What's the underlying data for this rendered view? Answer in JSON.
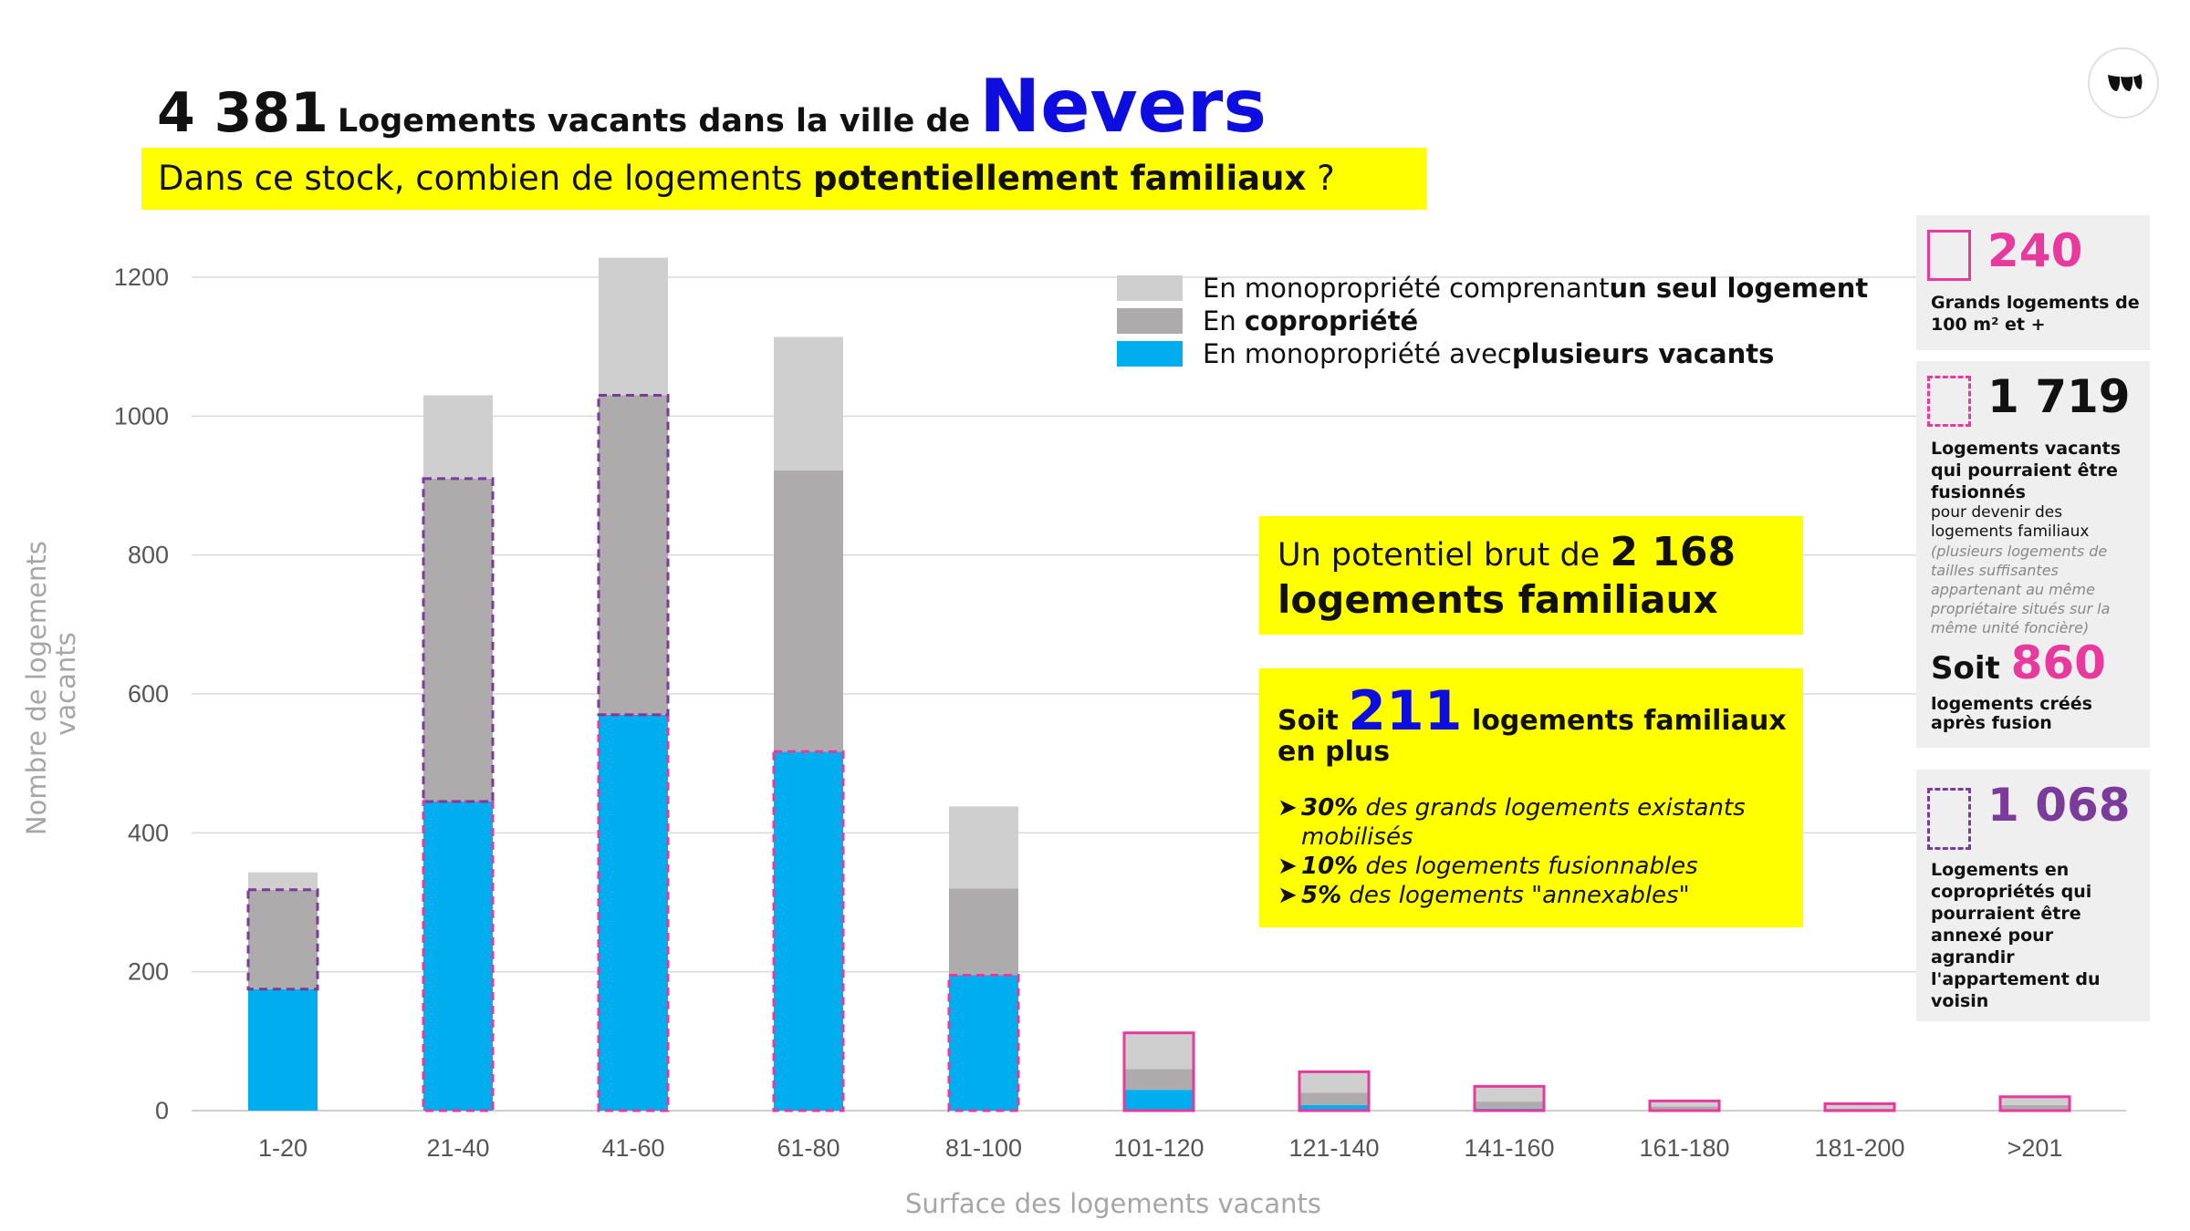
{
  "title": {
    "count": "4 381",
    "text": "Logements vacants dans la ville de",
    "city": "Nevers"
  },
  "subtitle": {
    "part1": "Dans ce stock, combien de logements ",
    "bold": "potentiellement familiaux",
    "part2": " ?"
  },
  "legend": [
    {
      "text": "En monopropriété comprenant ",
      "bold": "un seul logement",
      "color": "#d0cfcf"
    },
    {
      "text": "En ",
      "bold": "copropriété",
      "color": "#adabab"
    },
    {
      "text": "En monopropriété avec ",
      "bold": "plusieurs vacants",
      "color": "#00adef"
    }
  ],
  "box1": {
    "line1": "Un potentiel brut de ",
    "value": "2 168",
    "line2": "logements familiaux"
  },
  "box2": {
    "soit": "Soit ",
    "value": "211",
    "rest": " logements familiaux",
    "line2": "en plus",
    "bullets": [
      {
        "bold": "30%",
        "text": " des grands logements existants mobilisés"
      },
      {
        "bold": "10%",
        "text": " des logements fusionnables"
      },
      {
        "bold": "5%",
        "text": " des logements \"annexables\""
      }
    ]
  },
  "panels": {
    "p1": {
      "value": "240",
      "text": "Grands logements de 100 m² et +"
    },
    "p2": {
      "value": "1 719",
      "text": "Logements vacants qui pourraient être fusionnés",
      "small": "pour devenir des logements familiaux",
      "italic": "(plusieurs logements de tailles suffisantes appartenant au même propriétaire situés sur la même unité foncière)",
      "soit": "Soit ",
      "soit_value": "860",
      "soit_text": "logements créés après fusion"
    },
    "p3": {
      "value": "1 068",
      "text": "Logements en copropriétés qui pourraient être annexé pour agrandir l'appartement du voisin"
    }
  },
  "colors": {
    "mono_one": "#d0cfcf",
    "copro": "#adabab",
    "mono_multi": "#00adef",
    "pink": "#e8399e",
    "purple": "#7b3b9a",
    "yellow": "#ffff00",
    "blue_text": "#0d0de0"
  },
  "chart_data": {
    "type": "bar",
    "stacked": true,
    "categories": [
      "1-20",
      "21-40",
      "41-60",
      "61-80",
      "81-100",
      "101-120",
      "121-140",
      "141-160",
      "161-180",
      "181-200",
      ">201"
    ],
    "series": [
      {
        "name": "En monopropriété avec plusieurs vacants",
        "color": "#00adef",
        "values": [
          175,
          445,
          570,
          517,
          195,
          30,
          8,
          3,
          2,
          1,
          2
        ]
      },
      {
        "name": "En copropriété",
        "color": "#adabab",
        "values": [
          143,
          465,
          460,
          405,
          125,
          30,
          18,
          10,
          4,
          2,
          6
        ]
      },
      {
        "name": "En monopropriété comprenant un seul logement",
        "color": "#d0cfcf",
        "values": [
          25,
          120,
          198,
          192,
          118,
          52,
          30,
          22,
          8,
          7,
          12
        ]
      }
    ],
    "highlights": [
      {
        "category": "1-20",
        "from": 175,
        "to": 318,
        "style": "purple-dashed"
      },
      {
        "category": "21-40",
        "from": 0,
        "to": 445,
        "style": "pink-dashed"
      },
      {
        "category": "21-40",
        "from": 445,
        "to": 910,
        "style": "purple-dashed"
      },
      {
        "category": "41-60",
        "from": 0,
        "to": 570,
        "style": "pink-dashed"
      },
      {
        "category": "41-60",
        "from": 570,
        "to": 1030,
        "style": "purple-dashed"
      },
      {
        "category": "61-80",
        "from": 0,
        "to": 517,
        "style": "pink-dashed"
      },
      {
        "category": "81-100",
        "from": 0,
        "to": 195,
        "style": "pink-dashed"
      },
      {
        "category": "101-120",
        "from": 0,
        "to": 112,
        "style": "pink-solid"
      },
      {
        "category": "121-140",
        "from": 0,
        "to": 56,
        "style": "pink-solid"
      },
      {
        "category": "141-160",
        "from": 0,
        "to": 35,
        "style": "pink-solid"
      },
      {
        "category": "161-180",
        "from": 0,
        "to": 14,
        "style": "pink-solid"
      },
      {
        "category": "181-200",
        "from": 0,
        "to": 10,
        "style": "pink-solid"
      },
      {
        "category": ">201",
        "from": 0,
        "to": 20,
        "style": "pink-solid"
      }
    ],
    "ylim": [
      0,
      1200
    ],
    "yticks": [
      0,
      200,
      400,
      600,
      800,
      1000,
      1200
    ],
    "ylabel": "Nombre de logements vacants",
    "xlabel": "Surface des logements vacants",
    "grid": true
  }
}
